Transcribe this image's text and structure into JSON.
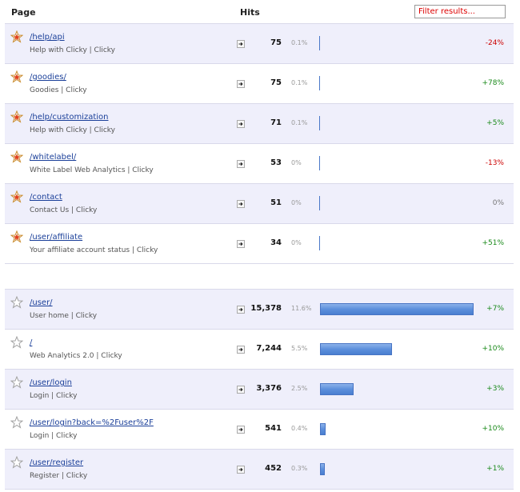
{
  "header": {
    "page_label": "Page",
    "hits_label": "Hits",
    "filter_placeholder": "Filter results..."
  },
  "pinned_rows": [
    {
      "path": "/help/api",
      "title": "Help with Clicky | Clicky",
      "hits": "75",
      "pct": "0.1%",
      "change": "-24%",
      "change_type": "neg",
      "starred": true,
      "bar_fraction": 0
    },
    {
      "path": "/goodies/",
      "title": "Goodies | Clicky",
      "hits": "75",
      "pct": "0.1%",
      "change": "+78%",
      "change_type": "pos",
      "starred": true,
      "bar_fraction": 0
    },
    {
      "path": "/help/customization",
      "title": "Help with Clicky | Clicky",
      "hits": "71",
      "pct": "0.1%",
      "change": "+5%",
      "change_type": "pos",
      "starred": true,
      "bar_fraction": 0
    },
    {
      "path": "/whitelabel/",
      "title": "White Label Web Analytics | Clicky",
      "hits": "53",
      "pct": "0%",
      "change": "-13%",
      "change_type": "neg",
      "starred": true,
      "bar_fraction": 0
    },
    {
      "path": "/contact",
      "title": "Contact Us | Clicky",
      "hits": "51",
      "pct": "0%",
      "change": "0%",
      "change_type": "zero",
      "starred": true,
      "bar_fraction": 0
    },
    {
      "path": "/user/affiliate",
      "title": "Your affiliate account status | Clicky",
      "hits": "34",
      "pct": "0%",
      "change": "+51%",
      "change_type": "pos",
      "starred": true,
      "bar_fraction": 0
    }
  ],
  "main_rows": [
    {
      "path": "/user/",
      "title": "User home | Clicky",
      "hits": "15,378",
      "pct": "11.6%",
      "change": "+7%",
      "change_type": "pos",
      "starred": false,
      "bar_fraction": 1.0
    },
    {
      "path": "/",
      "title": "Web Analytics 2.0 | Clicky",
      "hits": "7,244",
      "pct": "5.5%",
      "change": "+10%",
      "change_type": "pos",
      "starred": false,
      "bar_fraction": 0.471
    },
    {
      "path": "/user/login",
      "title": "Login | Clicky",
      "hits": "3,376",
      "pct": "2.5%",
      "change": "+3%",
      "change_type": "pos",
      "starred": false,
      "bar_fraction": 0.22
    },
    {
      "path": "/user/login?back=%2Fuser%2F",
      "title": "Login | Clicky",
      "hits": "541",
      "pct": "0.4%",
      "change": "+10%",
      "change_type": "pos",
      "starred": false,
      "bar_fraction": 0.035
    },
    {
      "path": "/user/register",
      "title": "Register | Clicky",
      "hits": "452",
      "pct": "0.3%",
      "change": "+1%",
      "change_type": "pos",
      "starred": false,
      "bar_fraction": 0.03
    }
  ],
  "colors": {
    "bar": "#5c8fdc",
    "shade_row": "#efeffb",
    "negative": "#cc0000",
    "positive": "#1a8a1a"
  },
  "icons": {
    "starred": "star-filled-icon",
    "unstarred": "star-outline-icon",
    "external": "external-link-icon"
  }
}
